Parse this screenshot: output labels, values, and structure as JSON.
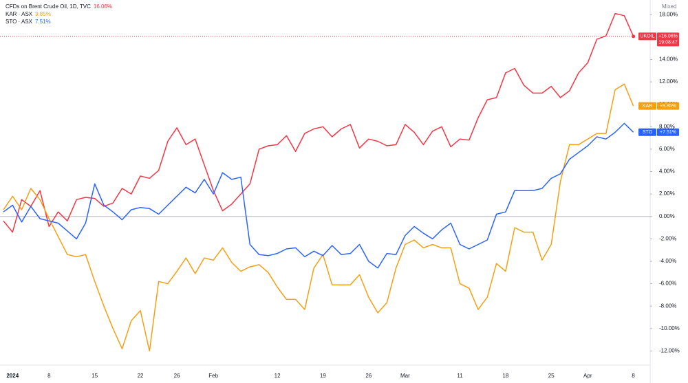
{
  "chart_data": {
    "type": "line",
    "scale_mode": "Mixed",
    "categories": [
      null,
      "2024",
      null,
      null,
      null,
      "8",
      null,
      null,
      null,
      null,
      "15",
      null,
      null,
      null,
      null,
      "22",
      null,
      null,
      null,
      "26",
      null,
      null,
      null,
      "Feb",
      null,
      null,
      null,
      null,
      null,
      null,
      "12",
      null,
      null,
      null,
      null,
      "19",
      null,
      null,
      null,
      null,
      "26",
      null,
      null,
      null,
      "Mar",
      null,
      null,
      null,
      null,
      null,
      "11",
      null,
      null,
      null,
      null,
      "18",
      null,
      null,
      null,
      null,
      "25",
      null,
      null,
      null,
      "Apr",
      null,
      null,
      null,
      null,
      "8"
    ],
    "ylim": [
      -13.2,
      19.3
    ],
    "yticks": [
      {
        "value": 18,
        "label": "18.00%"
      },
      {
        "value": 16,
        "label": "16.00%"
      },
      {
        "value": 14,
        "label": "14.00%"
      },
      {
        "value": 12,
        "label": "12.00%"
      },
      {
        "value": 10,
        "label": "10.00%"
      },
      {
        "value": 8,
        "label": "8.00%"
      },
      {
        "value": 6,
        "label": "6.00%"
      },
      {
        "value": 4,
        "label": "4.00%"
      },
      {
        "value": 2,
        "label": "2.00%"
      },
      {
        "value": 0,
        "label": "0.00%"
      },
      {
        "value": -2,
        "label": "-2.00%"
      },
      {
        "value": -4,
        "label": "-4.00%"
      },
      {
        "value": -6,
        "label": "-6.00%"
      },
      {
        "value": -8,
        "label": "-8.00%"
      },
      {
        "value": -10,
        "label": "-10.00%"
      },
      {
        "value": -12,
        "label": "-12.00%"
      }
    ],
    "zero_line": true,
    "series": [
      {
        "name": "CFDs on Brent Crude Oil, 1D, TVC",
        "value_label": "16.06%",
        "badge_symbol": "UKOIL",
        "badge_label": "+16.06%",
        "countdown": "19:08:47",
        "color": "#f23645",
        "values": [
          -0.4,
          -1.4,
          1.5,
          0.9,
          2.3,
          -0.9,
          0.4,
          -0.4,
          1.5,
          1.7,
          1.6,
          0.9,
          1.2,
          2.5,
          2.0,
          3.6,
          3.4,
          4.1,
          6.7,
          7.9,
          6.4,
          6.9,
          4.6,
          2.3,
          0.5,
          1.1,
          2.0,
          2.9,
          6.0,
          6.3,
          6.4,
          7.2,
          5.8,
          7.4,
          7.8,
          8.0,
          7.1,
          7.8,
          8.2,
          6.1,
          6.9,
          6.7,
          6.3,
          6.4,
          8.2,
          7.5,
          6.4,
          7.6,
          8.0,
          6.2,
          6.9,
          6.8,
          8.8,
          10.4,
          10.6,
          12.8,
          13.2,
          11.7,
          11.0,
          11.0,
          11.6,
          10.6,
          11.2,
          12.8,
          13.7,
          15.8,
          16.1,
          18.1,
          17.9,
          16.06
        ]
      },
      {
        "name": "KAR · ASX",
        "value_label": "9.85%",
        "badge_symbol": "KAR",
        "badge_label": "+9.85%",
        "color": "#f59f14",
        "values": [
          0.6,
          1.8,
          0.6,
          2.5,
          1.5,
          -0.2,
          -1.8,
          -3.4,
          -3.6,
          -3.4,
          -5.8,
          -8.0,
          -10.0,
          -11.8,
          -9.3,
          -8.4,
          -12.0,
          -5.8,
          -6.0,
          -4.9,
          -3.7,
          -5.1,
          -3.7,
          -3.9,
          -2.8,
          -4.1,
          -4.9,
          -4.5,
          -4.3,
          -5.0,
          -6.3,
          -7.4,
          -7.4,
          -8.3,
          -4.6,
          -3.4,
          -6.1,
          -6.1,
          -6.1,
          -5.2,
          -7.2,
          -8.6,
          -7.7,
          -4.6,
          -2.5,
          -2.1,
          -2.8,
          -2.5,
          -2.8,
          -2.8,
          -6.0,
          -6.4,
          -8.3,
          -7.2,
          -4.2,
          -4.9,
          -1.0,
          -1.4,
          -1.4,
          -3.9,
          -2.5,
          3.1,
          6.4,
          6.4,
          6.9,
          7.4,
          7.4,
          11.3,
          11.8,
          9.85
        ]
      },
      {
        "name": "STO · ASX",
        "value_label": "7.51%",
        "badge_symbol": "STO",
        "badge_label": "+7.51%",
        "color": "#2962ff",
        "values": [
          0.4,
          1.0,
          -0.5,
          0.9,
          -0.2,
          -0.4,
          -0.6,
          -1.3,
          -2.0,
          -0.6,
          2.9,
          1.0,
          0.4,
          -0.3,
          0.6,
          0.8,
          0.7,
          0.2,
          1.0,
          1.8,
          2.6,
          2.1,
          3.3,
          2.0,
          3.9,
          3.3,
          3.5,
          -2.5,
          -3.4,
          -3.5,
          -3.3,
          -2.9,
          -2.8,
          -3.6,
          -3.1,
          -3.5,
          -2.6,
          -3.4,
          -3.3,
          -2.5,
          -4.0,
          -4.6,
          -3.3,
          -3.4,
          -1.7,
          -0.9,
          -1.5,
          -2.0,
          -1.2,
          -0.6,
          -2.5,
          -2.9,
          -2.5,
          -2.1,
          0.2,
          0.4,
          2.3,
          2.3,
          2.3,
          2.5,
          3.4,
          3.8,
          5.1,
          5.7,
          6.3,
          7.1,
          6.9,
          7.5,
          8.3,
          7.51
        ]
      }
    ]
  }
}
